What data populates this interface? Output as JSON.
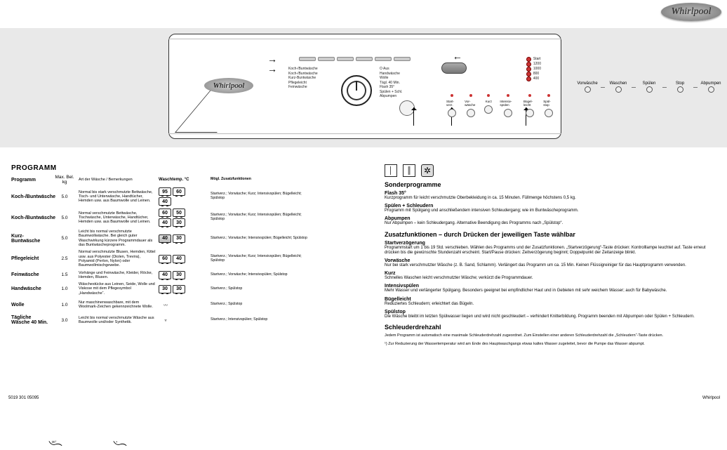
{
  "brand": "Whirlpool",
  "model_hint": "AWO/D 5306",
  "panel": {
    "sequence": [
      "Vorwäsche",
      "Waschen",
      "Spülen",
      "Stop",
      "Abpumpen"
    ],
    "arrow_labels": [
      "",
      ""
    ],
    "right_leds": [
      {
        "label": "Start"
      },
      {
        "label": "1200"
      },
      {
        "label": "1000"
      },
      {
        "label": "800"
      },
      {
        "label": "400"
      }
    ],
    "options": [
      "Start-verz.",
      "Vor-wäsche",
      "Kurz",
      "Intensiv-spülen",
      "Bügel-leicht",
      "Spül-stop"
    ],
    "dial_labels_left": [
      "Koch-/Buntwäsche",
      "Koch-/Buntwäsche",
      "Kurz-Buntwäsche",
      "Pflegeleicht",
      "Feinwäsche"
    ],
    "dial_labels_right": [
      "O Aus",
      "Handwäsche",
      "Wolle",
      "Tägl. 40 Min.",
      "Flash 35°",
      "Spülen + Schl.",
      "Abpumpen"
    ]
  },
  "left_column": {
    "heading": "Programm",
    "col_labels": [
      "Programm",
      "Max. Bel. kg",
      "Art der Wäsche / Bemerkungen",
      "Waschtemp. °C",
      "Mögl. Zusatzfunktionen"
    ],
    "default_opts": "Startverzögerung; Vorwäsche; Kurz; Intensivspülen; Bügelleicht; Spülstop",
    "rows": [
      {
        "name": "Koch-/Buntwäsche",
        "load": "5.0",
        "desc": "Normal bis stark verschmutzte Bettwäsche, Tisch- und Unterwäsche, Handtücher, Hemden usw. aus Baumwolle und Leinen.",
        "temps_text": "95 60 40",
        "temps": [
          95,
          60,
          40
        ],
        "opts": "Startverz.; Vorwäsche; Kurz; Intensivspülen; Bügelleicht; Spülstop"
      },
      {
        "name": "Koch-/Buntwäsche",
        "load": "5.0",
        "desc": "Normal verschmutzte Bettwäsche, Tischwäsche, Unterwäsche, Handtücher, Hemden usw. aus Baumwolle und Leinen.",
        "temps_text": "60 50 40 30",
        "temps": [
          60,
          50,
          40,
          30
        ],
        "opts": "Startverz.; Vorwäsche; Kurz; Intensivspülen; Bügelleicht; Spülstop"
      },
      {
        "name": "Kurz-Buntwäsche",
        "load": "5.0",
        "desc": "Leicht bis normal verschmutzte Baumwollwäsche. Bei gleich guter Waschwirkung kürzere Programmdauer als das Buntwäscheprogramm.",
        "temps_text": "40 30",
        "temps": [
          40,
          30
        ],
        "shade_first": true,
        "opts": "Startverz.; Vorwäsche; Intensivspülen; Bügelleicht; Spülstop"
      },
      {
        "name": "Pflegeleicht",
        "load": "2.5",
        "desc": "Normal verschmutzte Blusen, Hemden, Kittel usw. aus Polyester (Diolen, Trevira), Polyamid (Perlon, Nylon) oder Baumwollmischgewebe.",
        "temps_text": "60 40",
        "temps": [
          60,
          40
        ],
        "opts": "Startverz.; Vorwäsche; Kurz; Intensivspülen; Bügelleicht; Spülstop"
      },
      {
        "name": "Feinwäsche",
        "load": "1.5",
        "desc": "Vorhänge und Feinwäsche, Kleider, Röcke, Hemden, Blusen.",
        "temps_text": "40 30",
        "temps": [
          40,
          30
        ],
        "opts": "Startverz.; Vorwäsche; Intensivspülen; Spülstop"
      },
      {
        "name": "Handwäsche",
        "load": "1.0",
        "desc": "Wäschestücke aus Leinen, Seide, Wolle und Viskose mit dem Pflegesymbol „Handwäsche“.",
        "temps_text": "30",
        "temps": [
          30
        ],
        "opts": "Startverz.; Spülstop",
        "icon": "hand"
      },
      {
        "name": "Wolle",
        "load": "1.0",
        "desc": "Nur maschinenwaschbare, mit dem Woolmark-Zeichen gekennzeichnete Wolle.",
        "temps_text": "—",
        "temps": [],
        "opts": "Startverz.; Spülstop",
        "icon": "swirl"
      },
      {
        "name": "Tägliche Wäsche 40 Min.",
        "load": "3.0",
        "desc": "Leicht bis normal verschmutzte Wäsche aus Baumwolle und/oder Synthetik.",
        "temps_text": "—",
        "temps": [],
        "opts": "Startverz.; Intensivspülen; Spülstop",
        "icon": "bucket"
      }
    ],
    "hand_icons_note": ""
  },
  "right_column": {
    "dry_labels": [
      "Leinentrocknen",
      "Leinentrocknen (2)",
      "Nicht Trocknergeeignet"
    ],
    "special_heading": "Sonderprogramme",
    "special": [
      {
        "name": "Flash 35°",
        "desc": "Kurzprogramm für leicht verschmutzte Oberbekleidung in ca. 15 Minuten. Füllmenge höchstens 0,5 kg."
      },
      {
        "name": "Spülen + Schleudern",
        "desc": "Programm mit Spülgang und anschließendem intensiven Schleudergang; wie im Buntwäscheprogramm."
      },
      {
        "name": "Abpumpen",
        "desc": "Nur Abpumpen – kein Schleudergang. Alternative Beendigung des Programms nach „Spülstop“."
      }
    ],
    "extras_heading": "Zusatzfunktionen – durch Drücken der jeweiligen Taste wählbar",
    "extras": [
      {
        "name": "Startverzögerung",
        "desc": "Programmstart um 1 bis 19 Std. verschieben. Wählen des Programms und der Zusatzfunktionen. „Startverzögerung“-Taste drücken: Kontrolllampe leuchtet auf. Taste erneut drücken bis die gewünschte Stundenzahl erscheint. Start/Pause drücken: Zeitverzögerung beginnt; Doppelpunkt der Zeitanzeige blinkt."
      },
      {
        "name": "Vorwäsche",
        "desc": "Nur bei stark verschmutzter Wäsche (z. B. Sand, Schlamm). Verlängert das Programm um ca. 15 Min. Keinen Flüssigreiniger für das Hauptprogramm verwenden."
      },
      {
        "name": "Kurz",
        "desc": "Schnelles Waschen leicht verschmutzter Wäsche; verkürzt die Programmdauer."
      },
      {
        "name": "Intensivspülen",
        "desc": "Mehr Wasser und verlängerter Spülgang. Besonders geeignet bei empfindlicher Haut und in Gebieten mit sehr weichem Wasser; auch für Babywäsche."
      },
      {
        "name": "Bügelleicht",
        "desc": "Reduziertes Schleudern; erleichtert das Bügeln."
      },
      {
        "name": "Spülstop",
        "desc": "Die Wäsche bleibt im letzten Spülwasser liegen und wird nicht geschleudert – verhindert Knitterbildung. Programm beenden mit Abpumpen oder Spülen + Schleudern."
      }
    ],
    "spin_heading": "Schleuderdrehzahl",
    "spin_text": "Jedem Programm ist automatisch eine maximale Schleuderdrehzahl zugeordnet. Zum Einstellen einer anderen Schleuderdrehzahl die „Schleudern“-Taste drücken.",
    "footnote": "¹) Zur Reduzierung der Wassertemperatur wird am Ende des Hauptwaschgangs etwas kaltes Wasser zugeleitet, bevor die Pumpe das Wasser abpumpt."
  },
  "footer": {
    "page_id": "5019 301 05095",
    "brand": "Whirlpool"
  }
}
